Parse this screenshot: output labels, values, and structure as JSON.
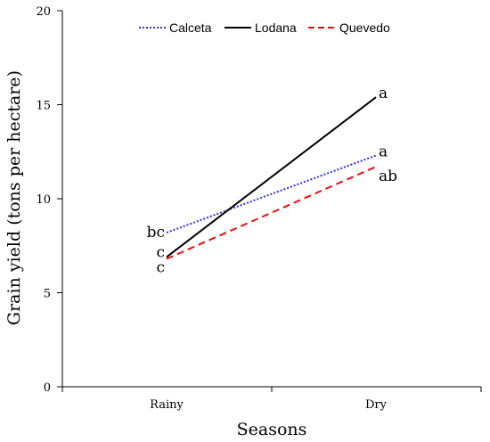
{
  "chart_data": {
    "type": "line",
    "title": "",
    "xlabel": "Seasons",
    "ylabel": "Grain yield (tons per hectare)",
    "categories": [
      "Rainy",
      "Dry"
    ],
    "ylim": [
      0,
      20
    ],
    "yticks": [
      "0",
      "5",
      "10",
      "15",
      "20"
    ],
    "grid": false,
    "legend_position": "top",
    "series": [
      {
        "name": "Calceta",
        "values": [
          8.2,
          12.3
        ],
        "labels": [
          "bc",
          "a"
        ],
        "color": "#3333cc",
        "style": "dotted"
      },
      {
        "name": "Lodana",
        "values": [
          6.9,
          15.4
        ],
        "labels": [
          "c",
          "a"
        ],
        "color": "#000000",
        "style": "solid"
      },
      {
        "name": "Quevedo",
        "values": [
          6.8,
          11.7
        ],
        "labels": [
          "c",
          "ab"
        ],
        "color": "#dd1111",
        "style": "dashed"
      }
    ]
  }
}
